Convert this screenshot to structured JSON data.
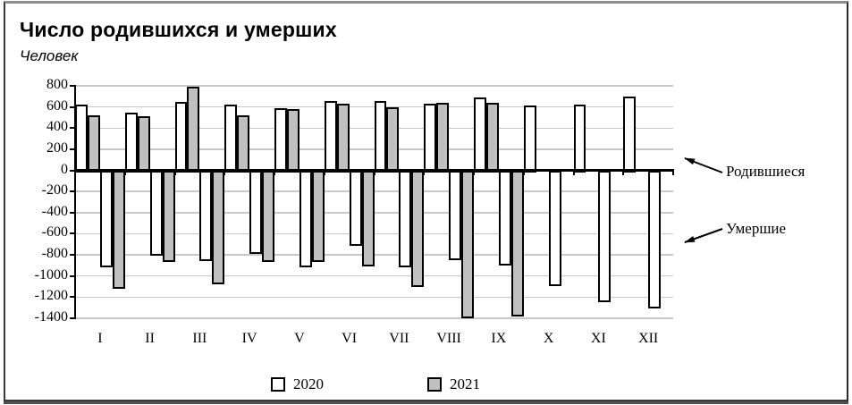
{
  "chart": {
    "title": "Число родившихся и умерших",
    "subtitle": "Человек",
    "annotations": {
      "births": "Родившиеся",
      "deaths": "Умершие"
    }
  },
  "chart_data": {
    "type": "bar",
    "title": "Число родившихся и умерших",
    "units_label": "Человек",
    "categories": [
      "I",
      "II",
      "III",
      "IV",
      "V",
      "VI",
      "VII",
      "VIII",
      "IX",
      "X",
      "XI",
      "XII"
    ],
    "series": [
      {
        "name": "2020",
        "group": "Родившиеся",
        "color": "#ffffff",
        "values": [
          620,
          545,
          645,
          620,
          590,
          655,
          660,
          630,
          690,
          610,
          620,
          700
        ]
      },
      {
        "name": "2021",
        "group": "Родившиеся",
        "color": "#c0c0c0",
        "values": [
          520,
          510,
          790,
          520,
          580,
          630,
          600,
          640,
          640,
          null,
          null,
          null
        ]
      },
      {
        "name": "2020",
        "group": "Умершие",
        "color": "#ffffff",
        "values": [
          -900,
          -790,
          -840,
          -770,
          -900,
          -700,
          -900,
          -830,
          -880,
          -1080,
          -1230,
          -1290
        ]
      },
      {
        "name": "2021",
        "group": "Умершие",
        "color": "#c0c0c0",
        "values": [
          -1100,
          -850,
          -1060,
          -850,
          -850,
          -890,
          -1090,
          -1380,
          -1370,
          null,
          null,
          null
        ]
      }
    ],
    "legend": [
      {
        "label": "2020",
        "color": "#ffffff"
      },
      {
        "label": "2021",
        "color": "#c0c0c0"
      }
    ],
    "ylim": [
      -1400,
      800
    ],
    "ytick_step": 200,
    "grid": true,
    "legend_position": "bottom",
    "bar_border_color": "#000000",
    "gridline_color": "#c8c8c8"
  }
}
